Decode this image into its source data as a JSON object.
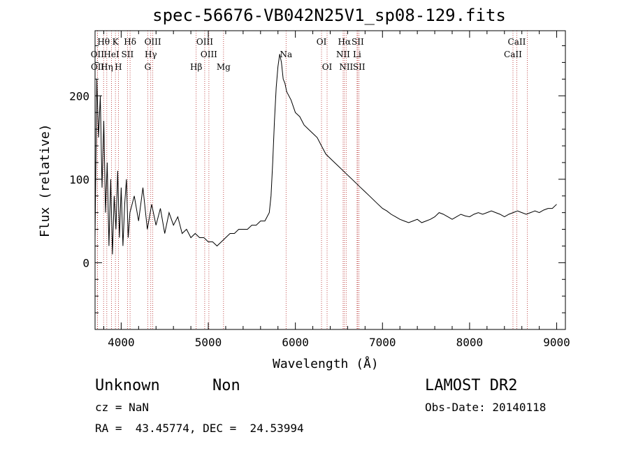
{
  "chart_data": {
    "type": "line",
    "title": "spec-56676-VB042N25V1_sp08-129.fits",
    "xlabel": "Wavelength (Å)",
    "ylabel": "Flux (relative)",
    "xlim": [
      3700,
      9100
    ],
    "ylim": [
      -80,
      278
    ],
    "xticks": [
      4000,
      5000,
      6000,
      7000,
      8000,
      9000
    ],
    "yticks": [
      0,
      100,
      200
    ],
    "grid": false,
    "series": [
      {
        "x": [
          3700,
          3720,
          3740,
          3760,
          3780,
          3800,
          3820,
          3840,
          3860,
          3880,
          3900,
          3920,
          3940,
          3960,
          3980,
          4000,
          4020,
          4040,
          4060,
          4080,
          4100,
          4150,
          4200,
          4250,
          4300,
          4350,
          4400,
          4450,
          4500,
          4550,
          4600,
          4650,
          4700,
          4750,
          4800,
          4850,
          4900,
          4950,
          5000,
          5050,
          5100,
          5150,
          5200,
          5250,
          5300,
          5350,
          5400,
          5450,
          5500,
          5550,
          5600,
          5650,
          5700,
          5720,
          5740,
          5760,
          5780,
          5800,
          5820,
          5840,
          5860,
          5880,
          5900,
          5950,
          6000,
          6050,
          6100,
          6150,
          6200,
          6250,
          6300,
          6350,
          6400,
          6450,
          6500,
          6550,
          6600,
          6650,
          6700,
          6750,
          6800,
          6850,
          6900,
          6950,
          7000,
          7050,
          7100,
          7150,
          7200,
          7250,
          7300,
          7350,
          7400,
          7450,
          7500,
          7550,
          7600,
          7650,
          7700,
          7750,
          7800,
          7850,
          7900,
          7950,
          8000,
          8050,
          8100,
          8150,
          8200,
          8250,
          8300,
          8350,
          8400,
          8450,
          8500,
          8550,
          8600,
          8650,
          8700,
          8750,
          8800,
          8850,
          8900,
          8950,
          9000
        ],
        "y": [
          30,
          220,
          150,
          200,
          90,
          170,
          60,
          120,
          20,
          100,
          10,
          80,
          40,
          110,
          30,
          90,
          20,
          70,
          100,
          30,
          60,
          80,
          50,
          90,
          40,
          70,
          45,
          65,
          35,
          60,
          45,
          55,
          35,
          40,
          30,
          35,
          30,
          30,
          25,
          25,
          20,
          25,
          30,
          35,
          35,
          40,
          40,
          40,
          45,
          45,
          50,
          50,
          60,
          80,
          120,
          170,
          210,
          235,
          250,
          240,
          220,
          215,
          205,
          195,
          180,
          175,
          165,
          160,
          155,
          150,
          140,
          130,
          125,
          120,
          115,
          110,
          105,
          100,
          95,
          90,
          85,
          80,
          75,
          70,
          65,
          62,
          58,
          55,
          52,
          50,
          48,
          50,
          52,
          48,
          50,
          52,
          55,
          60,
          58,
          55,
          52,
          55,
          58,
          56,
          55,
          58,
          60,
          58,
          60,
          62,
          60,
          58,
          55,
          58,
          60,
          62,
          60,
          58,
          60,
          62,
          60,
          63,
          65,
          65,
          70
        ]
      }
    ],
    "annotations": {
      "lines": [
        {
          "label": "Hθ",
          "x": 3798
        },
        {
          "label": "K",
          "x": 3934
        },
        {
          "label": "Hδ",
          "x": 4102
        },
        {
          "label": "OIII",
          "x": 4363
        },
        {
          "label": "OIII",
          "x": 4959
        },
        {
          "label": "OI",
          "x": 6300
        },
        {
          "label": "Hα",
          "x": 6563
        },
        {
          "label": "SII",
          "x": 6716
        },
        {
          "label": "CaII",
          "x": 8542
        },
        {
          "label": "OII",
          "x": 3727
        },
        {
          "label": "HeI",
          "x": 3889
        },
        {
          "label": "SII",
          "x": 4072
        },
        {
          "label": "Hγ",
          "x": 4340
        },
        {
          "label": "OIII",
          "x": 5007
        },
        {
          "label": "Na",
          "x": 5893
        },
        {
          "label": "NII",
          "x": 6548
        },
        {
          "label": "Li",
          "x": 6708
        },
        {
          "label": "CaII",
          "x": 8498
        },
        {
          "label": "OII",
          "x": 3729
        },
        {
          "label": "Hη",
          "x": 3835
        },
        {
          "label": "H",
          "x": 3968
        },
        {
          "label": "G",
          "x": 4305
        },
        {
          "label": "Hβ",
          "x": 4861
        },
        {
          "label": "Mg",
          "x": 5175
        },
        {
          "label": "OI",
          "x": 6364
        },
        {
          "label": "NII",
          "x": 6583
        },
        {
          "label": "SII",
          "x": 6731
        },
        {
          "label": "CaII",
          "x": 8662
        }
      ]
    }
  },
  "info": {
    "class": "Unknown",
    "subclass": "Non",
    "survey": "LAMOST DR2",
    "cz": "cz = NaN",
    "obsdate": "Obs-Date: 20140118",
    "radec": "RA =  43.45774, DEC =  24.53994"
  }
}
